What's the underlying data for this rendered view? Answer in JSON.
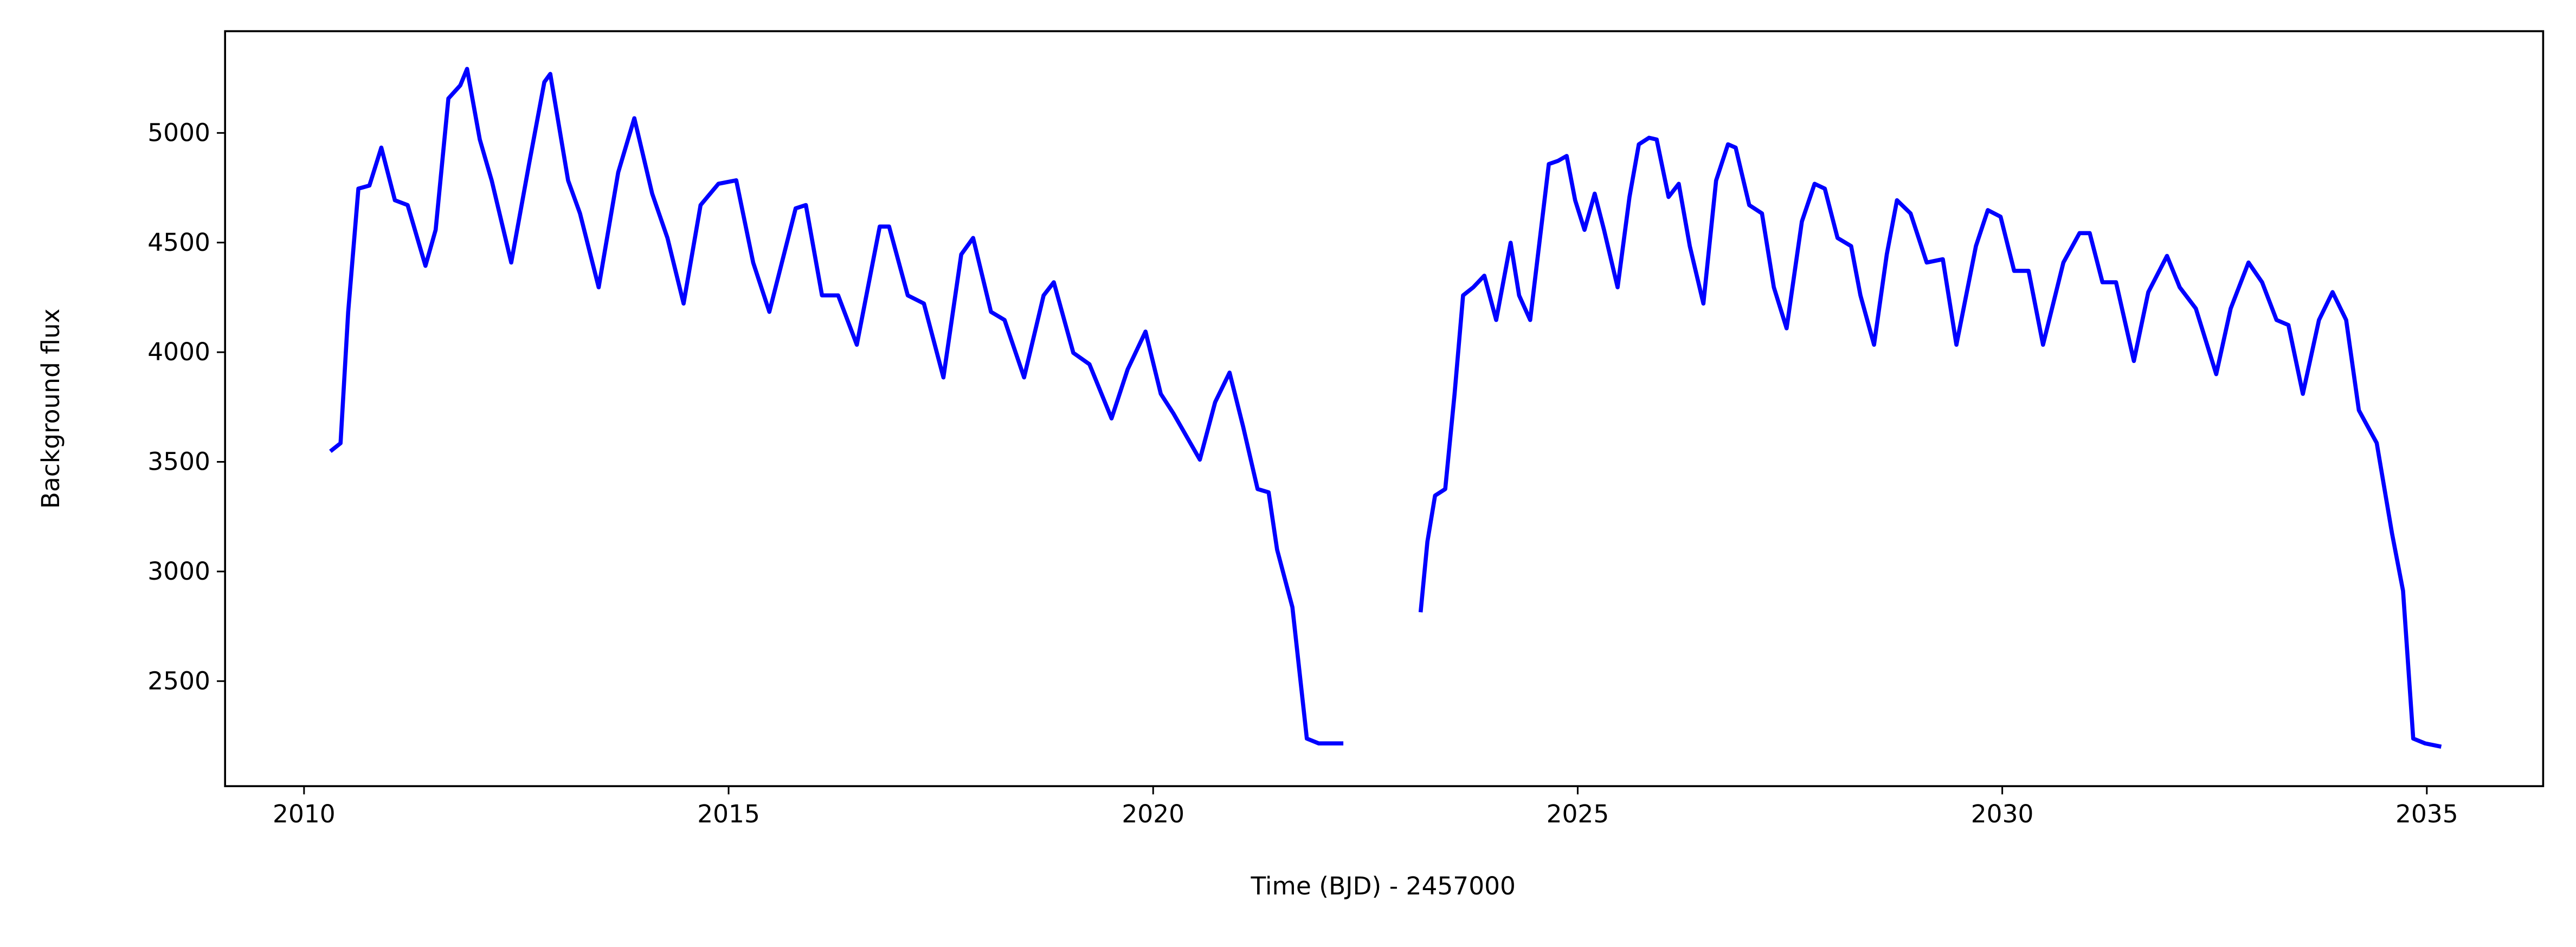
{
  "chart_data": {
    "type": "line",
    "xlabel": "Time (BJD) - 2457000",
    "ylabel": "Background flux",
    "color": "#0000ff",
    "x": [
      2010.31,
      2010.43,
      2010.52,
      2010.64,
      2010.77,
      2010.91,
      2011.07,
      2011.22,
      2011.43,
      2011.55,
      2011.7,
      2011.84,
      2011.92,
      2012.07,
      2012.21,
      2012.44,
      2012.65,
      2012.83,
      2012.9,
      2013.11,
      2013.25,
      2013.47,
      2013.7,
      2013.89,
      2014.1,
      2014.28,
      2014.47,
      2014.67,
      2014.88,
      2015.09,
      2015.29,
      2015.48,
      2015.79,
      2015.91,
      2016.1,
      2016.29,
      2016.51,
      2016.78,
      2016.89,
      2017.11,
      2017.3,
      2017.53,
      2017.74,
      2017.88,
      2018.09,
      2018.25,
      2018.48,
      2018.71,
      2018.83,
      2019.06,
      2019.25,
      2019.51,
      2019.7,
      2019.91,
      2020.09,
      2020.24,
      2020.55,
      2020.73,
      2020.9,
      2021.06,
      2021.23,
      2021.36,
      2021.46,
      2021.64,
      2021.81,
      2021.95,
      2022.24,
      2022.7,
      2023.15,
      2023.23,
      2023.32,
      2023.44,
      2023.55,
      2023.65,
      2023.77,
      2023.9,
      2024.04,
      2024.21,
      2024.31,
      2024.44,
      2024.66,
      2024.77,
      2024.87,
      2024.97,
      2025.08,
      2025.2,
      2025.31,
      2025.47,
      2025.61,
      2025.72,
      2025.84,
      2025.93,
      2026.07,
      2026.19,
      2026.32,
      2026.48,
      2026.63,
      2026.77,
      2026.86,
      2027.02,
      2027.17,
      2027.31,
      2027.46,
      2027.64,
      2027.79,
      2027.91,
      2028.06,
      2028.22,
      2028.33,
      2028.49,
      2028.64,
      2028.76,
      2028.92,
      2029.11,
      2029.3,
      2029.46,
      2029.69,
      2029.83,
      2029.98,
      2030.14,
      2030.31,
      2030.48,
      2030.72,
      2030.91,
      2031.03,
      2031.18,
      2031.34,
      2031.55,
      2031.72,
      2031.94,
      2032.09,
      2032.28,
      2032.52,
      2032.69,
      2032.9,
      2033.06,
      2033.23,
      2033.37,
      2033.54,
      2033.73,
      2033.89,
      2034.05,
      2034.2,
      2034.41,
      2034.59,
      2034.72,
      2034.84,
      2034.98,
      2035.17
    ],
    "values": [
      3548,
      3585,
      4184,
      4746,
      4760,
      4933,
      4693,
      4671,
      4394,
      4558,
      5157,
      5217,
      5292,
      4970,
      4783,
      4409,
      4858,
      5232,
      5269,
      4783,
      4633,
      4296,
      4820,
      5067,
      4723,
      4521,
      4222,
      4671,
      4768,
      4784,
      4408,
      4184,
      4656,
      4671,
      4259,
      4259,
      4034,
      4573,
      4573,
      4259,
      4222,
      3885,
      4446,
      4521,
      4184,
      4147,
      3885,
      4259,
      4319,
      3997,
      3945,
      3698,
      3922,
      4094,
      3810,
      3720,
      3510,
      3772,
      3907,
      3660,
      3376,
      3361,
      3099,
      2837,
      2238,
      2216,
      2216,
      null,
      2814,
      3136,
      3346,
      3376,
      3810,
      4259,
      4296,
      4349,
      4147,
      4499,
      4259,
      4147,
      4858,
      4873,
      4895,
      4693,
      4558,
      4723,
      4558,
      4296,
      4708,
      4948,
      4978,
      4970,
      4708,
      4768,
      4484,
      4222,
      4783,
      4948,
      4933,
      4671,
      4633,
      4296,
      4109,
      4596,
      4768,
      4746,
      4521,
      4484,
      4259,
      4034,
      4446,
      4693,
      4633,
      4409,
      4424,
      4034,
      4484,
      4648,
      4618,
      4371,
      4371,
      4034,
      4409,
      4543,
      4543,
      4319,
      4319,
      3960,
      4274,
      4439,
      4296,
      4199,
      3900,
      4199,
      4409,
      4319,
      4147,
      4124,
      3810,
      4147,
      4274,
      4147,
      3735,
      3586,
      3174,
      2912,
      2238,
      2216,
      2201
    ],
    "xlim": [
      2009.07,
      2036.37
    ],
    "ylim": [
      2021,
      5464
    ],
    "xticks": [
      2010,
      2015,
      2020,
      2025,
      2030,
      2035
    ],
    "yticks": [
      2500,
      3000,
      3500,
      4000,
      4500,
      5000
    ]
  }
}
